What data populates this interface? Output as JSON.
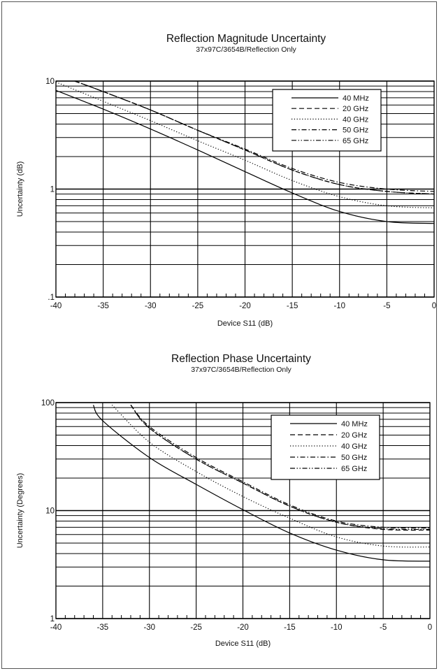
{
  "chart_data": [
    {
      "type": "line",
      "title": "Reflection Magnitude Uncertainty",
      "subtitle": "37x97C/3654B/Reflection Only",
      "xlabel": "Device S11 (dB)",
      "ylabel": "Uncertainty (dB)",
      "scale_y": "log",
      "xlim": [
        -40,
        0
      ],
      "ylim": [
        0.1,
        10
      ],
      "x_ticks": [
        -40,
        -35,
        -30,
        -25,
        -20,
        -15,
        -10,
        -5,
        0
      ],
      "x_tick_labels": [
        "-40",
        "-35",
        "-30",
        "-25",
        "-20",
        "-15",
        "-10",
        "-5",
        "0"
      ],
      "y_ticks": [
        0.1,
        1,
        10
      ],
      "y_tick_labels": [
        ".1",
        "1",
        "10"
      ],
      "grid": true,
      "legend_position": "top-right",
      "series": [
        {
          "name": "40 MHz",
          "style": "solid",
          "x": [
            -40,
            -35,
            -30,
            -25,
            -20,
            -15,
            -10,
            -5,
            0
          ],
          "values": [
            8.2,
            5.5,
            3.6,
            2.3,
            1.45,
            0.92,
            0.62,
            0.5,
            0.48
          ]
        },
        {
          "name": "20 GHz",
          "style": "dashed",
          "x": [
            -38,
            -35,
            -30,
            -25,
            -20,
            -15,
            -10,
            -5,
            0
          ],
          "values": [
            10,
            8,
            5.4,
            3.5,
            2.3,
            1.5,
            1.1,
            0.95,
            0.9
          ]
        },
        {
          "name": "40 GHz",
          "style": "dotted",
          "x": [
            -40,
            -35,
            -30,
            -25,
            -20,
            -15,
            -10,
            -5,
            0
          ],
          "values": [
            9.8,
            6.5,
            4.3,
            2.8,
            1.85,
            1.2,
            0.85,
            0.7,
            0.67
          ]
        },
        {
          "name": "50 GHz",
          "style": "dash-dot",
          "x": [
            -38,
            -35,
            -30,
            -25,
            -20,
            -15,
            -10,
            -5,
            0
          ],
          "values": [
            10,
            8,
            5.4,
            3.5,
            2.35,
            1.55,
            1.15,
            1.0,
            0.95
          ]
        },
        {
          "name": "65 GHz",
          "style": "dash-dot-dot",
          "x": [
            -38,
            -35,
            -30,
            -25,
            -20,
            -15,
            -10,
            -5,
            0
          ],
          "values": [
            10,
            8,
            5.4,
            3.5,
            2.3,
            1.5,
            1.1,
            0.95,
            0.9
          ]
        }
      ]
    },
    {
      "type": "line",
      "title": "Reflection Phase Uncertainty",
      "subtitle": "37x97C/3654B/Reflection Only",
      "xlabel": "Device S11 (dB)",
      "ylabel": "Uncertainty (Degrees)",
      "scale_y": "log",
      "xlim": [
        -40,
        0
      ],
      "ylim": [
        1,
        100
      ],
      "x_ticks": [
        -40,
        -35,
        -30,
        -25,
        -20,
        -15,
        -10,
        -5,
        0
      ],
      "x_tick_labels": [
        "-40",
        "-35",
        "-30",
        "-25",
        "-20",
        "-15",
        "-10",
        "-5",
        "0"
      ],
      "y_ticks": [
        1,
        10,
        100
      ],
      "y_tick_labels": [
        "1",
        "10",
        "100"
      ],
      "grid": true,
      "legend_position": "top-right",
      "series": [
        {
          "name": "40 MHz",
          "style": "solid",
          "x": [
            -36,
            -35,
            -30,
            -25,
            -20,
            -15,
            -10,
            -5,
            0
          ],
          "values": [
            95,
            68,
            31,
            17.5,
            10.2,
            6.2,
            4.3,
            3.5,
            3.4
          ]
        },
        {
          "name": "20 GHz",
          "style": "dashed",
          "x": [
            -32,
            -30,
            -25,
            -20,
            -15,
            -10,
            -5,
            0
          ],
          "values": [
            95,
            58,
            30,
            18,
            11,
            7.8,
            6.7,
            6.6
          ]
        },
        {
          "name": "40 GHz",
          "style": "dotted",
          "x": [
            -34,
            -30,
            -25,
            -20,
            -15,
            -10,
            -5,
            0
          ],
          "values": [
            95,
            43,
            23,
            13.5,
            8.5,
            5.7,
            4.7,
            4.6
          ]
        },
        {
          "name": "50 GHz",
          "style": "dash-dot",
          "x": [
            -32,
            -30,
            -25,
            -20,
            -15,
            -10,
            -5,
            0
          ],
          "values": [
            95,
            60,
            31,
            18.5,
            11.3,
            8.0,
            7.0,
            6.9
          ]
        },
        {
          "name": "65 GHz",
          "style": "dash-dot-dot",
          "x": [
            -32,
            -30,
            -25,
            -20,
            -15,
            -10,
            -5,
            0
          ],
          "values": [
            95,
            58,
            30,
            18,
            11,
            7.8,
            6.8,
            6.7
          ]
        }
      ]
    }
  ]
}
